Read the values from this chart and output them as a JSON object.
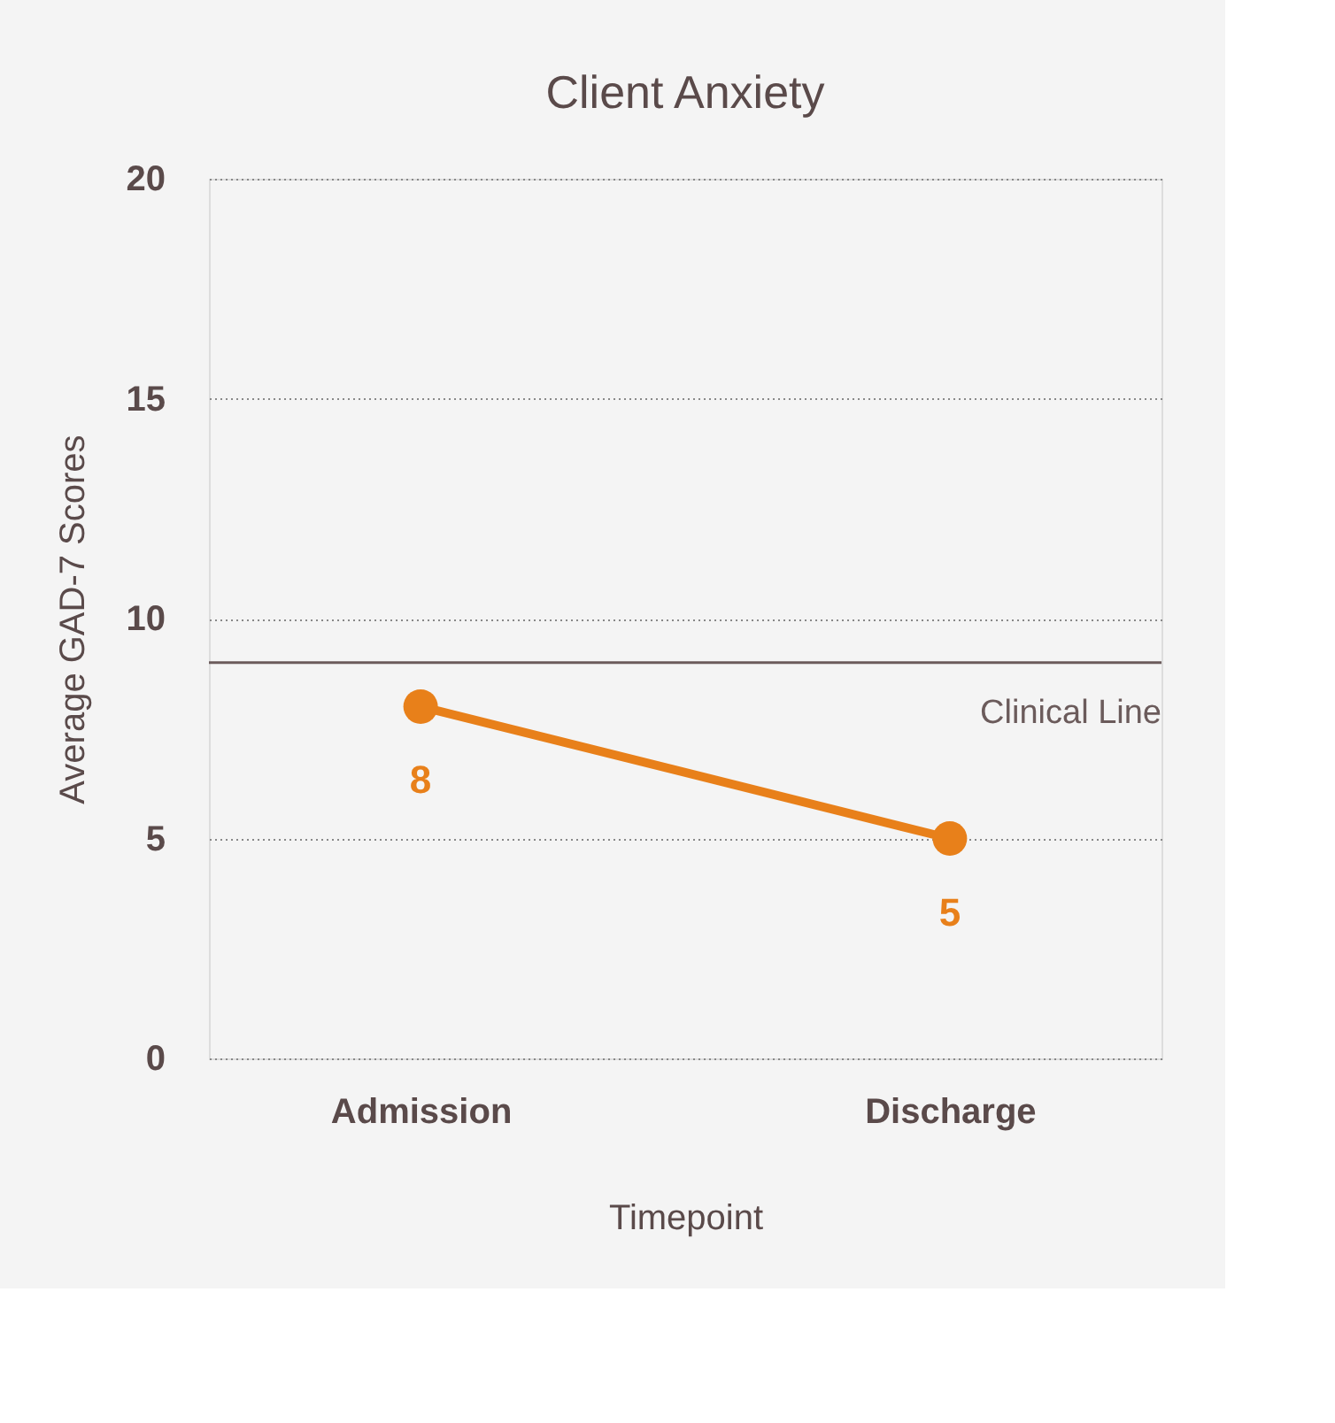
{
  "chart_data": {
    "type": "line",
    "title": "Client Anxiety",
    "xlabel": "Timepoint",
    "ylabel": "Average GAD-7 Scores",
    "categories": [
      "Admission",
      "Discharge"
    ],
    "series": [
      {
        "color": "#e8801a",
        "values": [
          8,
          5
        ]
      }
    ],
    "ylim": [
      0,
      20
    ],
    "yticks": [
      0,
      5,
      10,
      15,
      20
    ],
    "grid": "y",
    "marker": "circle",
    "line_style": "solid",
    "data_labels": true,
    "ref_lines": [
      {
        "axis": "y",
        "value": 9,
        "label": "Clinical Line",
        "color": "#6b5b5b"
      }
    ]
  }
}
